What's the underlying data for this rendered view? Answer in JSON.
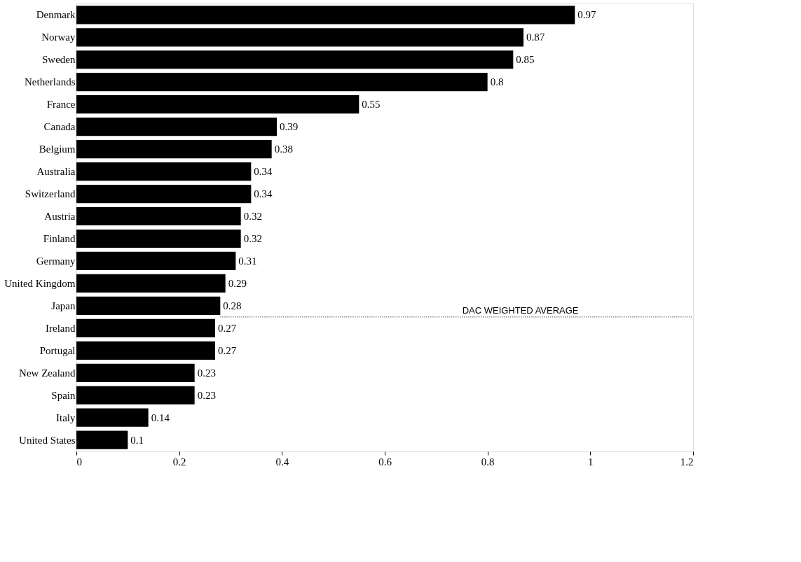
{
  "chart_data": {
    "type": "bar",
    "orientation": "horizontal",
    "categories": [
      "Denmark",
      "Norway",
      "Sweden",
      "Netherlands",
      "France",
      "Canada",
      "Belgium",
      "Australia",
      "Switzerland",
      "Austria",
      "Finland",
      "Germany",
      "United Kingdom",
      "Japan",
      "Ireland",
      "Portugal",
      "New Zealand",
      "Spain",
      "Italy",
      "United States"
    ],
    "values": [
      0.97,
      0.87,
      0.85,
      0.8,
      0.55,
      0.39,
      0.38,
      0.34,
      0.34,
      0.32,
      0.32,
      0.31,
      0.29,
      0.28,
      0.27,
      0.27,
      0.23,
      0.23,
      0.14,
      0.1
    ],
    "color": "#000000",
    "data_labels": true,
    "xlim": [
      0,
      1.2
    ],
    "xticks": [
      0,
      0.2,
      0.4,
      0.6,
      0.8,
      1,
      1.2
    ],
    "grid": false,
    "ref_lines": [
      {
        "axis": "y",
        "value": "Japan",
        "label": "DAC WEIGHTED AVERAGE",
        "line_style": "dotted",
        "color": "#000000"
      }
    ]
  }
}
